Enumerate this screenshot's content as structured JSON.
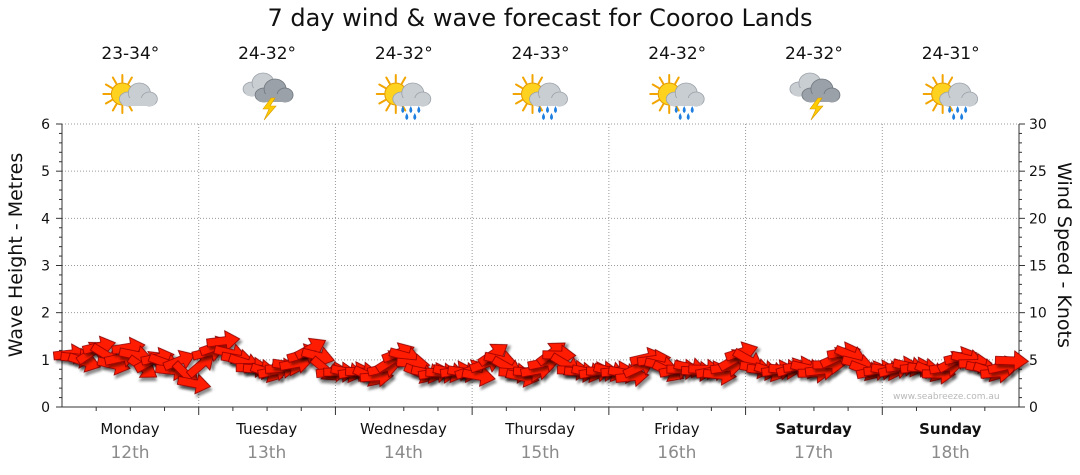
{
  "chart_data": {
    "type": "line",
    "title": "7 day wind & wave forecast for Cooroo Lands",
    "ylabel_left": "Wave Height - Metres",
    "ylabel_right": "Wind Speed - Knots",
    "y_left_range": [
      0,
      6
    ],
    "y_left_ticks": [
      "0",
      "1",
      "2",
      "3",
      "4",
      "5",
      "6"
    ],
    "y_right_range": [
      0,
      30
    ],
    "y_right_ticks": [
      "0",
      "5",
      "10",
      "15",
      "20",
      "25",
      "30"
    ],
    "grid": true,
    "days": [
      {
        "day": "Monday",
        "date": "12th",
        "temp": "23-34°",
        "icon": "partly-cloudy-sun-icon",
        "bold": false
      },
      {
        "day": "Tuesday",
        "date": "13th",
        "temp": "24-32°",
        "icon": "thunderstorm-icon",
        "bold": false
      },
      {
        "day": "Wednesday",
        "date": "14th",
        "temp": "24-32°",
        "icon": "sun-showers-icon",
        "bold": false
      },
      {
        "day": "Thursday",
        "date": "15th",
        "temp": "24-33°",
        "icon": "sun-showers-icon",
        "bold": false
      },
      {
        "day": "Friday",
        "date": "16th",
        "temp": "24-32°",
        "icon": "sun-showers-icon",
        "bold": false
      },
      {
        "day": "Saturday",
        "date": "17th",
        "temp": "24-32°",
        "icon": "thunderstorm-icon",
        "bold": true
      },
      {
        "day": "Sunday",
        "date": "18th",
        "temp": "24-31°",
        "icon": "sun-showers-icon",
        "bold": true
      }
    ],
    "series": [
      {
        "name": "Wind Speed",
        "units": "knots",
        "arrow_color": "#ff1a00",
        "values": [
          5.6,
          5.2,
          4.8,
          5.8,
          6.4,
          5.5,
          4.5,
          5.2,
          6.3,
          5.5,
          4.2,
          4.8,
          5.2,
          4.7,
          3.9,
          4.9,
          3.4,
          2.5,
          4.5,
          5.8,
          6.4,
          7.0,
          5.7,
          5.1,
          4.7,
          4.2,
          4.0,
          3.7,
          3.8,
          4.1,
          4.4,
          4.6,
          5.6,
          6.2,
          5.4,
          4.0,
          3.7,
          3.7,
          3.7,
          3.7,
          3.7,
          3.3,
          3.2,
          4.1,
          4.9,
          5.7,
          5.4,
          4.6,
          3.6,
          3.6,
          3.6,
          3.6,
          3.7,
          3.8,
          3.7,
          3.9,
          3.3,
          4.6,
          5.6,
          5.0,
          4.2,
          3.6,
          3.2,
          3.7,
          3.9,
          4.7,
          5.7,
          5.5,
          4.5,
          3.9,
          3.7,
          3.7,
          3.7,
          3.8,
          3.8,
          3.8,
          3.6,
          3.2,
          4.2,
          5.2,
          5.0,
          4.4,
          3.8,
          3.9,
          4.0,
          4.2,
          3.8,
          4.0,
          3.8,
          3.4,
          4.2,
          5.0,
          5.8,
          5.0,
          4.1,
          3.9,
          3.8,
          3.9,
          4.0,
          4.1,
          4.3,
          4.1,
          3.6,
          3.9,
          4.5,
          5.2,
          5.8,
          5.5,
          4.6,
          3.9,
          3.8,
          3.9,
          3.9,
          4.0,
          4.3,
          4.3,
          4.2,
          4.1,
          3.8,
          3.5,
          4.2,
          4.8,
          5.3,
          5.1,
          4.6,
          4.1,
          3.8,
          3.6,
          4.3,
          4.9
        ]
      }
    ],
    "watermark": "www.seabreeze.com.au"
  }
}
